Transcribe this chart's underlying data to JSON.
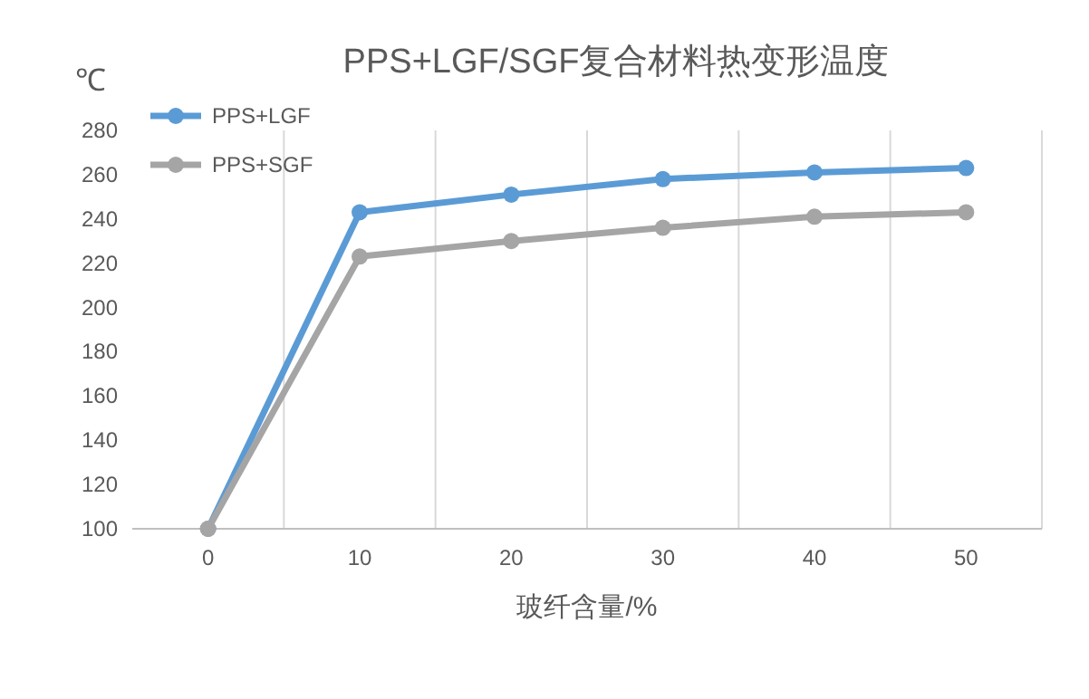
{
  "chart_data": {
    "type": "line",
    "title": "PPS+LGF/SGF复合材料热变形温度",
    "xlabel": "玻纤含量/%",
    "ylabel": "℃",
    "categories": [
      "0",
      "10",
      "20",
      "30",
      "40",
      "50"
    ],
    "series": [
      {
        "name": "PPS+LGF",
        "color": "#5b9bd5",
        "values": [
          100,
          243,
          251,
          258,
          261,
          263
        ]
      },
      {
        "name": "PPS+SGF",
        "color": "#a5a5a5",
        "values": [
          100,
          223,
          230,
          236,
          241,
          243
        ]
      }
    ],
    "ylim": [
      100,
      280
    ],
    "yticks": [
      100,
      120,
      140,
      160,
      180,
      200,
      220,
      240,
      260,
      280
    ],
    "grid": "x",
    "legend": "top left",
    "marker": "circle",
    "line_style": "solid"
  }
}
